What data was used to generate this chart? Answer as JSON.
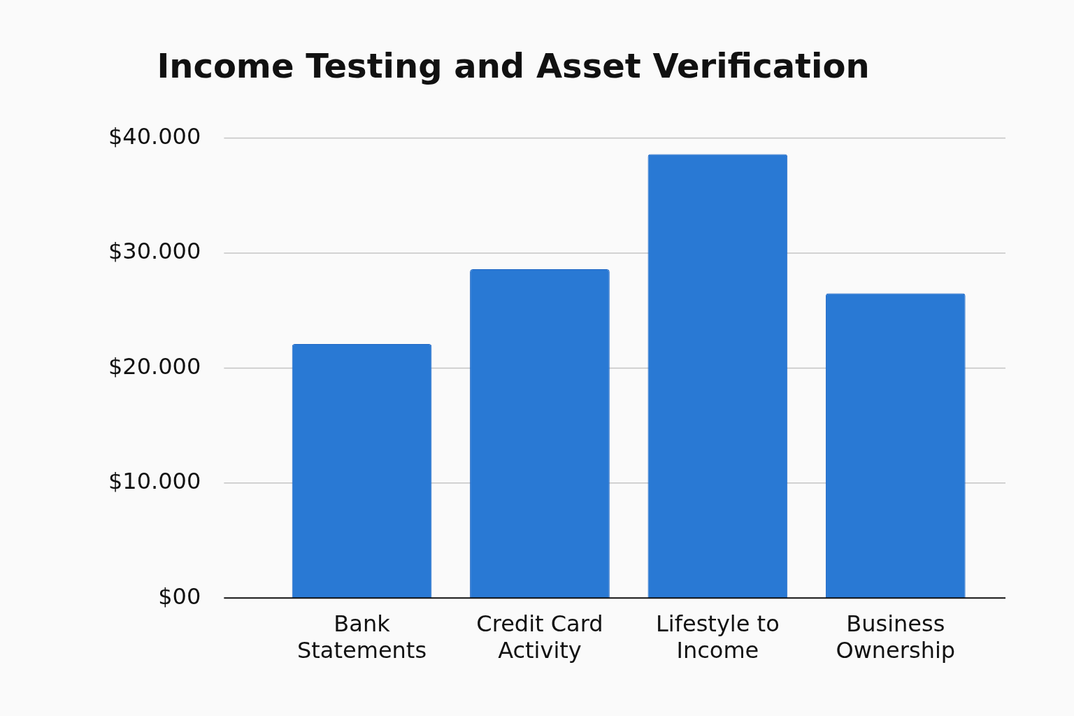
{
  "chart_data": {
    "type": "bar",
    "title": "Income Testing and Asset Verification",
    "categories": [
      "Bank Statements",
      "Credit Card Activity",
      "Lifestyle to Income",
      "Business Ownership"
    ],
    "values": [
      22100,
      28600,
      38600,
      26500
    ],
    "color": "#2979d4",
    "ylim": [
      0,
      40000
    ],
    "yticks": [
      {
        "value": 0,
        "label": "$00"
      },
      {
        "value": 10000,
        "label": "$10.000"
      },
      {
        "value": 20000,
        "label": "$20.000"
      },
      {
        "value": 30000,
        "label": "$30.000"
      },
      {
        "value": 40000,
        "label": "$40.000"
      }
    ],
    "grid": "y"
  }
}
